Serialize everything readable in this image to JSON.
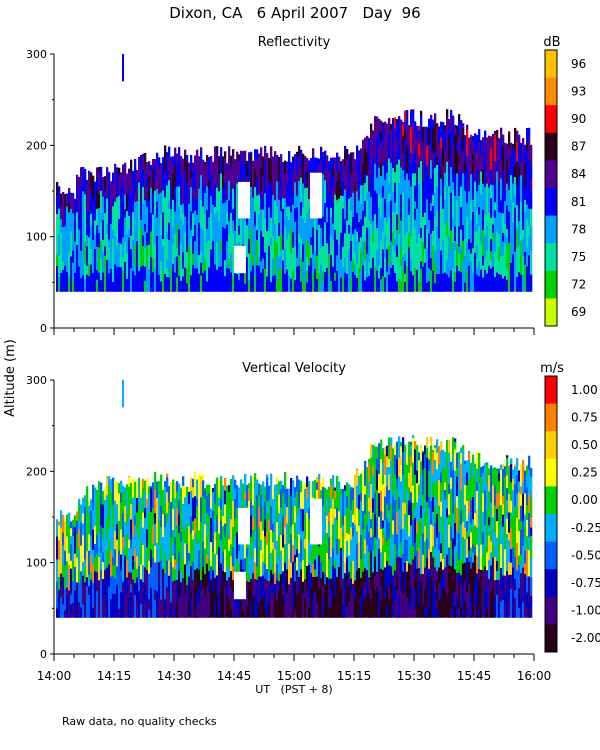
{
  "chart_data": [
    {
      "type": "heatmap",
      "title": "Reflectivity",
      "units": "dB",
      "ylabel": "Altitude (m)",
      "xlim": [
        0,
        120
      ],
      "ylim": [
        0,
        300
      ],
      "yticks": [
        0,
        100,
        200,
        300
      ],
      "colorbar_labels": [
        "96",
        "93",
        "90",
        "87",
        "84",
        "81",
        "78",
        "75",
        "72",
        "69"
      ],
      "colorbar_colors": [
        "#ffc000",
        "#ff8c00",
        "#ff0000",
        "#2a0020",
        "#500090",
        "#0000ff",
        "#00a0ff",
        "#00e0a0",
        "#00d000",
        "#c8ff00"
      ],
      "cloud_base": 40,
      "top_profile": [
        [
          0,
          160
        ],
        [
          5,
          160
        ],
        [
          6,
          180
        ],
        [
          15,
          180
        ],
        [
          25,
          200
        ],
        [
          55,
          200
        ],
        [
          75,
          200
        ],
        [
          78,
          220
        ],
        [
          80,
          240
        ],
        [
          100,
          240
        ],
        [
          102,
          230
        ],
        [
          110,
          220
        ],
        [
          120,
          220
        ]
      ]
    },
    {
      "type": "heatmap",
      "title": "Vertical Velocity",
      "units": "m/s",
      "xlim": [
        0,
        120
      ],
      "ylim": [
        0,
        300
      ],
      "yticks": [
        0,
        100,
        200,
        300
      ],
      "colorbar_labels": [
        "1.00",
        "0.75",
        "0.50",
        "0.25",
        "0.00",
        "-0.25",
        "-0.50",
        "-0.75",
        "-1.00",
        "-2.00"
      ],
      "colorbar_colors": [
        "#ff0000",
        "#ff8000",
        "#ffd000",
        "#ffff00",
        "#00d000",
        "#00b0ff",
        "#0060ff",
        "#0000c0",
        "#400080",
        "#280018"
      ],
      "cloud_base": 40,
      "top_profile": [
        [
          0,
          160
        ],
        [
          5,
          160
        ],
        [
          6,
          180
        ],
        [
          15,
          200
        ],
        [
          55,
          200
        ],
        [
          75,
          200
        ],
        [
          78,
          220
        ],
        [
          80,
          240
        ],
        [
          100,
          240
        ],
        [
          102,
          230
        ],
        [
          110,
          220
        ],
        [
          120,
          220
        ]
      ]
    }
  ],
  "figure_title": "Dixon, CA   6 April 2007   Day  96",
  "shared_ylabel": "Altitude (m)",
  "x_tick_labels": [
    "14:00",
    "14:15",
    "14:30",
    "14:45",
    "15:00",
    "15:15",
    "15:30",
    "15:45",
    "16:00"
  ],
  "xlabel": "UT   (PST + 8)",
  "footnote": "Raw data, no quality checks"
}
